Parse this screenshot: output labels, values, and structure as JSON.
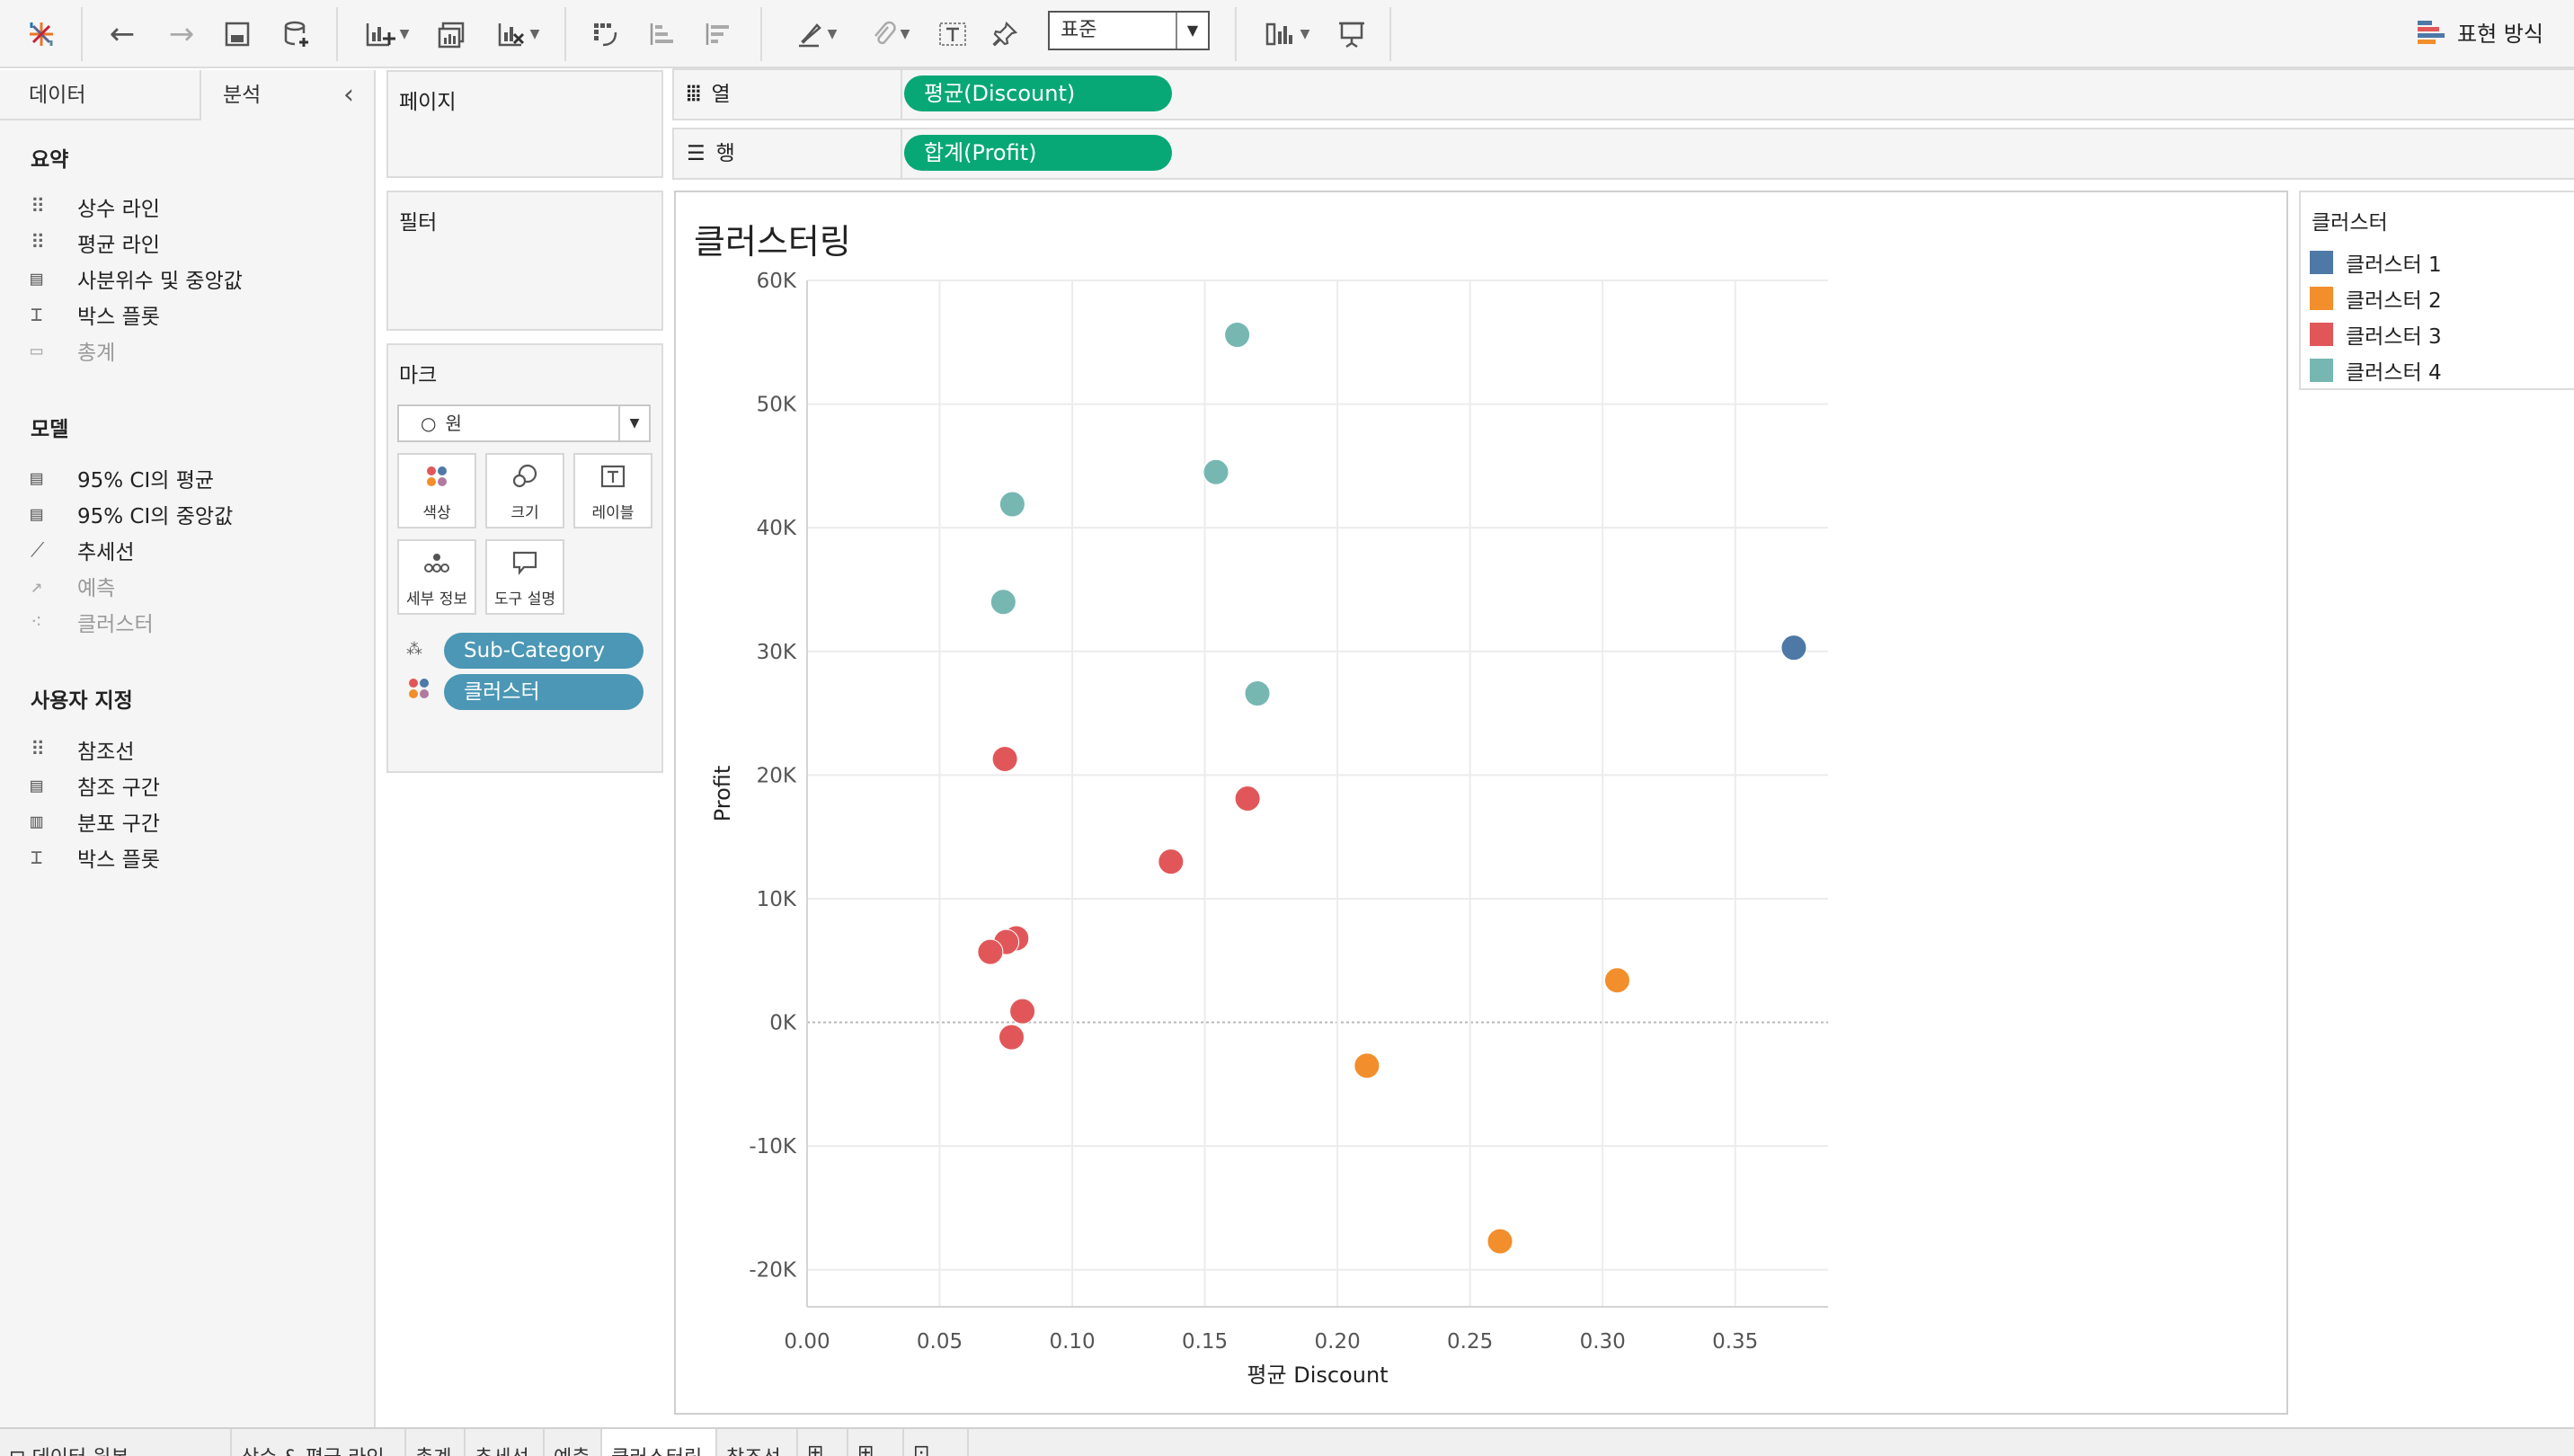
{
  "toolbar": {
    "standard_select": "표준",
    "show_me_label": "표현 방식"
  },
  "left_panel": {
    "tabs": [
      "데이터",
      "분석"
    ],
    "sections": [
      {
        "title": "요약",
        "items": [
          {
            "label": "상수 라인",
            "icon": "constant-line-icon",
            "enabled": true
          },
          {
            "label": "평균 라인",
            "icon": "average-line-icon",
            "enabled": true
          },
          {
            "label": "사분위수 및 중앙값",
            "icon": "median-quartiles-icon",
            "enabled": true
          },
          {
            "label": "박스 플롯",
            "icon": "box-plot-icon",
            "enabled": true
          },
          {
            "label": "총계",
            "icon": "totals-icon",
            "enabled": false
          }
        ]
      },
      {
        "title": "모델",
        "items": [
          {
            "label": "95% CI의 평균",
            "icon": "average-ci-icon",
            "enabled": true
          },
          {
            "label": "95% CI의 중앙값",
            "icon": "median-ci-icon",
            "enabled": true
          },
          {
            "label": "추세선",
            "icon": "trend-line-icon",
            "enabled": true
          },
          {
            "label": "예측",
            "icon": "forecast-icon",
            "enabled": false
          },
          {
            "label": "클러스터",
            "icon": "cluster-icon",
            "enabled": false
          }
        ]
      },
      {
        "title": "사용자 지정",
        "items": [
          {
            "label": "참조선",
            "icon": "reference-line-icon",
            "enabled": true
          },
          {
            "label": "참조 구간",
            "icon": "reference-band-icon",
            "enabled": true
          },
          {
            "label": "분포 구간",
            "icon": "distribution-band-icon",
            "enabled": true
          },
          {
            "label": "박스 플롯",
            "icon": "box-plot-icon",
            "enabled": true
          }
        ]
      }
    ]
  },
  "cards": {
    "pages": "페이지",
    "filters": "필터",
    "marks": "마크",
    "mark_type": "원",
    "mark_buttons": [
      "색상",
      "크기",
      "레이블",
      "세부 정보",
      "도구 설명"
    ],
    "mark_pills": [
      "Sub-Category",
      "클러스터"
    ]
  },
  "shelves": {
    "columns_label": "열",
    "rows_label": "행",
    "columns_pill": "평균(Discount)",
    "rows_pill": "합계(Profit)"
  },
  "legend": {
    "title": "클러스터",
    "items": [
      {
        "label": "클러스터 1",
        "color": "#4e79a7"
      },
      {
        "label": "클러스터 2",
        "color": "#f28e2b"
      },
      {
        "label": "클러스터 3",
        "color": "#e15759"
      },
      {
        "label": "클러스터 4",
        "color": "#76b7b2"
      }
    ]
  },
  "bottom_tabs": [
    "데이터 원본",
    "상수 & 평균 라인",
    "총계",
    "추세선",
    "예측",
    "클러스터링",
    "참조선"
  ],
  "chart_data": {
    "type": "scatter",
    "title": "클러스터링",
    "xlabel": "평균 Discount",
    "ylabel": "Profit",
    "xlim": [
      0.0,
      0.385
    ],
    "ylim": [
      -23000,
      60000
    ],
    "x_ticks": [
      "0.00",
      "0.05",
      "0.10",
      "0.15",
      "0.20",
      "0.25",
      "0.30",
      "0.35"
    ],
    "y_ticks": [
      "-20K",
      "-10K",
      "0K",
      "10K",
      "20K",
      "30K",
      "40K",
      "50K",
      "60K"
    ],
    "grid": true,
    "legend": "right",
    "series": [
      {
        "name": "클러스터 1",
        "color": "#4e79a7",
        "points": [
          [
            0.3721,
            30300
          ]
        ]
      },
      {
        "name": "클러스터 2",
        "color": "#f28e2b",
        "points": [
          [
            0.3055,
            3400
          ],
          [
            0.2111,
            -3500
          ],
          [
            0.2613,
            -17700
          ]
        ]
      },
      {
        "name": "클러스터 3",
        "color": "#e15759",
        "points": [
          [
            0.0746,
            21300
          ],
          [
            0.1661,
            18100
          ],
          [
            0.1372,
            13000
          ],
          [
            0.0789,
            6800
          ],
          [
            0.0751,
            6500
          ],
          [
            0.0691,
            5700
          ],
          [
            0.0812,
            900
          ],
          [
            0.0771,
            -1200
          ]
        ]
      },
      {
        "name": "클러스터 4",
        "color": "#76b7b2",
        "points": [
          [
            0.1622,
            55600
          ],
          [
            0.1542,
            44500
          ],
          [
            0.0774,
            41900
          ],
          [
            0.074,
            34000
          ],
          [
            0.1698,
            26600
          ]
        ]
      }
    ]
  }
}
